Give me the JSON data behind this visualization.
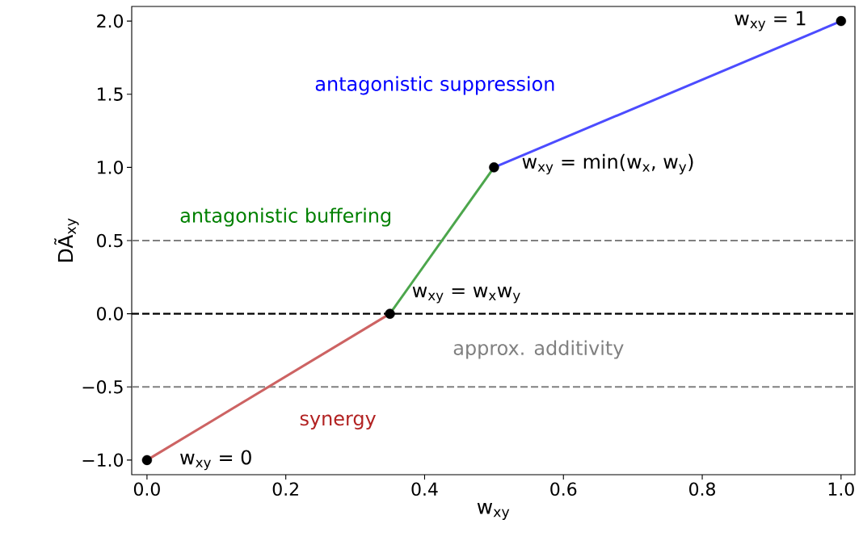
{
  "chart_data": {
    "type": "line",
    "xlabel": "w$_{xy}$",
    "ylabel": "DÃ$_{xy}$",
    "xlim": [
      -0.022,
      1.02
    ],
    "ylim": [
      -1.1,
      2.1
    ],
    "xticks": [
      {
        "value": 0,
        "label": "0.0"
      },
      {
        "value": 0.2,
        "label": "0.2"
      },
      {
        "value": 0.4,
        "label": "0.4"
      },
      {
        "value": 0.6,
        "label": "0.6"
      },
      {
        "value": 0.8,
        "label": "0.8"
      },
      {
        "value": 1,
        "label": "1.0"
      }
    ],
    "yticks": [
      {
        "value": -1,
        "label": "−1.0"
      },
      {
        "value": -0.5,
        "label": "−0.5"
      },
      {
        "value": 0,
        "label": "0.0"
      },
      {
        "value": 0.5,
        "label": "0.5"
      },
      {
        "value": 1,
        "label": "1.0"
      },
      {
        "value": 1.5,
        "label": "1.5"
      },
      {
        "value": 2,
        "label": "2.0"
      }
    ],
    "series": [
      {
        "color": "#cd6363",
        "x": [
          0,
          0.35
        ],
        "values": [
          -1,
          0
        ],
        "line_style": "solid"
      },
      {
        "color": "#4ca64c",
        "x": [
          0.35,
          0.5
        ],
        "values": [
          0,
          1
        ],
        "line_style": "solid"
      },
      {
        "color": "#4c4cff",
        "x": [
          0.5,
          1
        ],
        "values": [
          1,
          2
        ],
        "line_style": "solid"
      },
      {
        "type": "scatter",
        "color": "#000000",
        "x": [
          0,
          0.35,
          0.5,
          1
        ],
        "values": [
          -1,
          0,
          1,
          2
        ],
        "marker": "circle"
      }
    ],
    "ref_lines": [
      {
        "axis": "y",
        "value": 0.5,
        "color": "#808080",
        "line_style": "dashed"
      },
      {
        "axis": "y",
        "value": 0,
        "color": "#000000",
        "line_style": "dashed"
      },
      {
        "axis": "y",
        "value": -0.5,
        "color": "#808080",
        "line_style": "dashed"
      }
    ],
    "annotations": [
      "antagonistic suppression",
      "antagonistic buffering",
      "approx. additivity",
      "synergy",
      {
        "text": "w$_{xy}$ = 0",
        "x": 0,
        "y": -1
      },
      {
        "text": "w$_{xy}$ = w$_{x}$w$_{y}$",
        "x": 0.35,
        "y": 0
      },
      {
        "text": "w$_{xy}$ = min(w$_{x}$, w$_{y}$)",
        "x": 0.5,
        "y": 1
      },
      {
        "text": "w$_{xy}$ = 1",
        "x": 1,
        "y": 2
      }
    ],
    "grid": false
  }
}
